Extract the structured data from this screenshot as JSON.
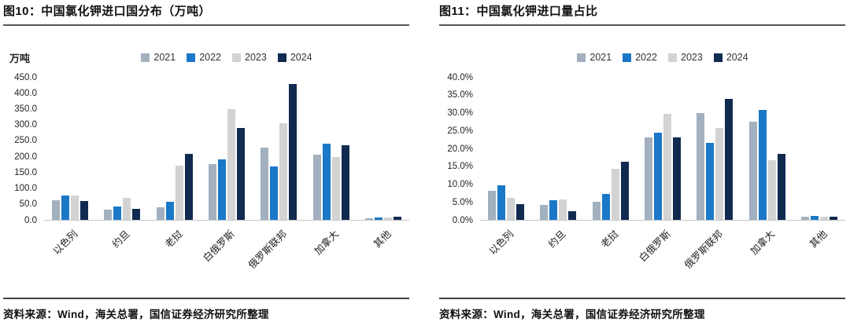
{
  "colors": {
    "series": {
      "2021": "#a3b0bf",
      "2022": "#1b78c8",
      "2023": "#d3d3d3",
      "2024": "#112a50"
    },
    "axis_baseline": "#c6c6c6",
    "title_rule": "#555555",
    "source_rule": "#404040"
  },
  "chart_data": [
    {
      "type": "bar",
      "title": "图10：中国氯化钾进口国分布（万吨）",
      "ylabel": "万吨",
      "categories": [
        "以色列",
        "约旦",
        "老挝",
        "白俄罗斯",
        "俄罗斯联邦",
        "加拿大",
        "其他"
      ],
      "series": [
        {
          "name": "2021",
          "values": [
            62,
            32,
            39,
            175,
            227,
            206,
            5
          ]
        },
        {
          "name": "2022",
          "values": [
            77,
            42,
            58,
            190,
            168,
            240,
            8
          ]
        },
        {
          "name": "2023",
          "values": [
            76,
            70,
            170,
            348,
            303,
            197,
            8
          ]
        },
        {
          "name": "2024",
          "values": [
            60,
            34,
            207,
            290,
            428,
            234,
            10
          ]
        }
      ],
      "ylim": [
        0,
        450
      ],
      "ytick_step": 50,
      "ytick_decimals": 1,
      "ytick_suffix": "",
      "legend_position": "top",
      "grid": false,
      "source": "资料来源：Wind，海关总署，国信证券经济研究所整理"
    },
    {
      "type": "bar",
      "title": "图11：中国氯化钾进口量占比",
      "ylabel": "",
      "categories": [
        "以色列",
        "约旦",
        "老挝",
        "白俄罗斯",
        "俄罗斯联邦",
        "加拿大",
        "其他"
      ],
      "series": [
        {
          "name": "2021",
          "values": [
            8.2,
            4.2,
            5.0,
            23.1,
            30.0,
            27.5,
            0.9
          ]
        },
        {
          "name": "2022",
          "values": [
            9.6,
            5.6,
            7.2,
            24.3,
            21.6,
            30.7,
            1.0
          ]
        },
        {
          "name": "2023",
          "values": [
            6.2,
            5.8,
            14.3,
            29.6,
            25.8,
            16.7,
            0.8
          ]
        },
        {
          "name": "2024",
          "values": [
            4.5,
            2.5,
            16.3,
            23.0,
            33.9,
            18.4,
            0.9
          ]
        }
      ],
      "ylim": [
        0,
        40
      ],
      "ytick_step": 5,
      "ytick_decimals": 1,
      "ytick_suffix": "%",
      "legend_position": "top",
      "grid": false,
      "source": "资料来源：Wind，海关总署，国信证券经济研究所整理"
    }
  ]
}
